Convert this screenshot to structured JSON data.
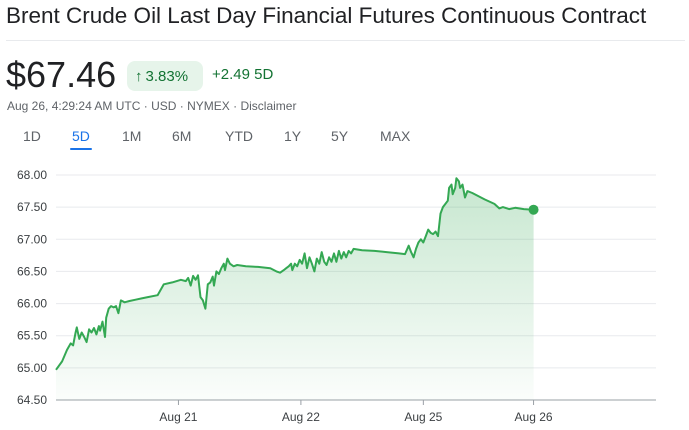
{
  "title": "Brent Crude Oil Last Day Financial Futures Continuous Contract",
  "price": "$67.46",
  "change_percent": "3.83%",
  "change_abs": "+2.49 5D",
  "meta": {
    "timestamp": "Aug 26, 4:29:24 AM UTC",
    "currency": "USD",
    "exchange": "NYMEX",
    "disclaimer": "Disclaimer",
    "separator": " · "
  },
  "tabs": [
    {
      "label": "1D",
      "active": false
    },
    {
      "label": "5D",
      "active": true
    },
    {
      "label": "1M",
      "active": false
    },
    {
      "label": "6M",
      "active": false
    },
    {
      "label": "YTD",
      "active": false
    },
    {
      "label": "1Y",
      "active": false
    },
    {
      "label": "5Y",
      "active": false
    },
    {
      "label": "MAX",
      "active": false
    }
  ],
  "colors": {
    "line": "#34a853",
    "positive": "#137333",
    "positive_bg": "#e6f4ea",
    "grid": "#e8eaed",
    "tab_active": "#1a73e8"
  },
  "icons": {
    "change_arrow": "arrow-up-icon"
  },
  "chart_data": {
    "type": "line",
    "yticks": [
      "68.00",
      "67.50",
      "67.00",
      "66.50",
      "66.00",
      "65.50",
      "65.00",
      "64.50"
    ],
    "ylim": [
      64.5,
      68.0
    ],
    "xticks": [
      {
        "label": "Aug 21",
        "t": 1.0
      },
      {
        "label": "Aug 22",
        "t": 2.0
      },
      {
        "label": "Aug 25",
        "t": 3.0
      },
      {
        "label": "Aug 26",
        "t": 3.9
      }
    ],
    "xlim": [
      0,
      4.9
    ],
    "grid": true,
    "series": [
      {
        "points": [
          [
            0.0,
            64.97
          ],
          [
            0.05,
            65.1
          ],
          [
            0.09,
            65.28
          ],
          [
            0.12,
            65.38
          ],
          [
            0.14,
            65.35
          ],
          [
            0.16,
            65.55
          ],
          [
            0.17,
            65.63
          ],
          [
            0.19,
            65.45
          ],
          [
            0.21,
            65.55
          ],
          [
            0.23,
            65.48
          ],
          [
            0.25,
            65.4
          ],
          [
            0.27,
            65.6
          ],
          [
            0.29,
            65.55
          ],
          [
            0.31,
            65.62
          ],
          [
            0.33,
            65.52
          ],
          [
            0.35,
            65.65
          ],
          [
            0.36,
            65.58
          ],
          [
            0.38,
            65.72
          ],
          [
            0.4,
            65.48
          ],
          [
            0.41,
            65.78
          ],
          [
            0.43,
            65.92
          ],
          [
            0.45,
            65.96
          ],
          [
            0.47,
            65.94
          ],
          [
            0.49,
            65.96
          ],
          [
            0.51,
            65.85
          ],
          [
            0.53,
            66.05
          ],
          [
            0.56,
            66.02
          ],
          [
            0.6,
            66.04
          ],
          [
            0.65,
            66.06
          ],
          [
            0.7,
            66.08
          ],
          [
            0.75,
            66.1
          ],
          [
            0.83,
            66.13
          ],
          [
            0.88,
            66.3
          ],
          [
            0.95,
            66.33
          ],
          [
            1.02,
            66.37
          ],
          [
            1.06,
            66.35
          ],
          [
            1.08,
            66.4
          ],
          [
            1.1,
            66.28
          ],
          [
            1.12,
            66.43
          ],
          [
            1.14,
            66.37
          ],
          [
            1.16,
            66.44
          ],
          [
            1.18,
            66.1
          ],
          [
            1.2,
            66.05
          ],
          [
            1.22,
            65.92
          ],
          [
            1.24,
            66.3
          ],
          [
            1.26,
            66.33
          ],
          [
            1.28,
            66.42
          ],
          [
            1.29,
            66.28
          ],
          [
            1.31,
            66.5
          ],
          [
            1.33,
            66.46
          ],
          [
            1.35,
            66.55
          ],
          [
            1.37,
            66.62
          ],
          [
            1.38,
            66.52
          ],
          [
            1.4,
            66.7
          ],
          [
            1.42,
            66.62
          ],
          [
            1.45,
            66.58
          ],
          [
            1.48,
            66.6
          ],
          [
            1.55,
            66.58
          ],
          [
            1.65,
            66.57
          ],
          [
            1.75,
            66.55
          ],
          [
            1.8,
            66.5
          ],
          [
            1.83,
            66.48
          ],
          [
            1.86,
            66.52
          ],
          [
            1.88,
            66.55
          ],
          [
            1.9,
            66.58
          ],
          [
            1.92,
            66.62
          ],
          [
            1.93,
            66.52
          ],
          [
            1.95,
            66.62
          ],
          [
            1.97,
            66.58
          ],
          [
            1.99,
            66.68
          ],
          [
            2.01,
            66.62
          ],
          [
            2.03,
            66.78
          ],
          [
            2.05,
            66.55
          ],
          [
            2.07,
            66.72
          ],
          [
            2.09,
            66.62
          ],
          [
            2.11,
            66.5
          ],
          [
            2.13,
            66.7
          ],
          [
            2.15,
            66.62
          ],
          [
            2.17,
            66.8
          ],
          [
            2.19,
            66.65
          ],
          [
            2.21,
            66.6
          ],
          [
            2.23,
            66.72
          ],
          [
            2.25,
            66.65
          ],
          [
            2.27,
            66.78
          ],
          [
            2.29,
            66.65
          ],
          [
            2.31,
            66.82
          ],
          [
            2.33,
            66.7
          ],
          [
            2.35,
            66.8
          ],
          [
            2.37,
            66.72
          ],
          [
            2.39,
            66.82
          ],
          [
            2.41,
            66.78
          ],
          [
            2.43,
            66.85
          ],
          [
            2.5,
            66.83
          ],
          [
            2.6,
            66.82
          ],
          [
            2.7,
            66.8
          ],
          [
            2.8,
            66.78
          ],
          [
            2.85,
            66.77
          ],
          [
            2.88,
            66.9
          ],
          [
            2.9,
            66.8
          ],
          [
            2.92,
            66.72
          ],
          [
            2.94,
            66.85
          ],
          [
            2.96,
            66.95
          ],
          [
            2.98,
            67.0
          ],
          [
            3.0,
            66.95
          ],
          [
            3.02,
            67.05
          ],
          [
            3.04,
            67.15
          ],
          [
            3.06,
            67.1
          ],
          [
            3.08,
            67.08
          ],
          [
            3.1,
            67.12
          ],
          [
            3.12,
            67.05
          ],
          [
            3.14,
            67.4
          ],
          [
            3.16,
            67.5
          ],
          [
            3.18,
            67.55
          ],
          [
            3.2,
            67.6
          ],
          [
            3.21,
            67.8
          ],
          [
            3.23,
            67.85
          ],
          [
            3.24,
            67.7
          ],
          [
            3.26,
            67.8
          ],
          [
            3.27,
            67.95
          ],
          [
            3.29,
            67.9
          ],
          [
            3.3,
            67.8
          ],
          [
            3.32,
            67.85
          ],
          [
            3.34,
            67.65
          ],
          [
            3.36,
            67.75
          ],
          [
            3.4,
            67.72
          ],
          [
            3.5,
            67.62
          ],
          [
            3.58,
            67.55
          ],
          [
            3.62,
            67.48
          ],
          [
            3.65,
            67.5
          ],
          [
            3.7,
            67.47
          ],
          [
            3.75,
            67.49
          ],
          [
            3.82,
            67.47
          ],
          [
            3.9,
            67.46
          ]
        ]
      }
    ]
  }
}
